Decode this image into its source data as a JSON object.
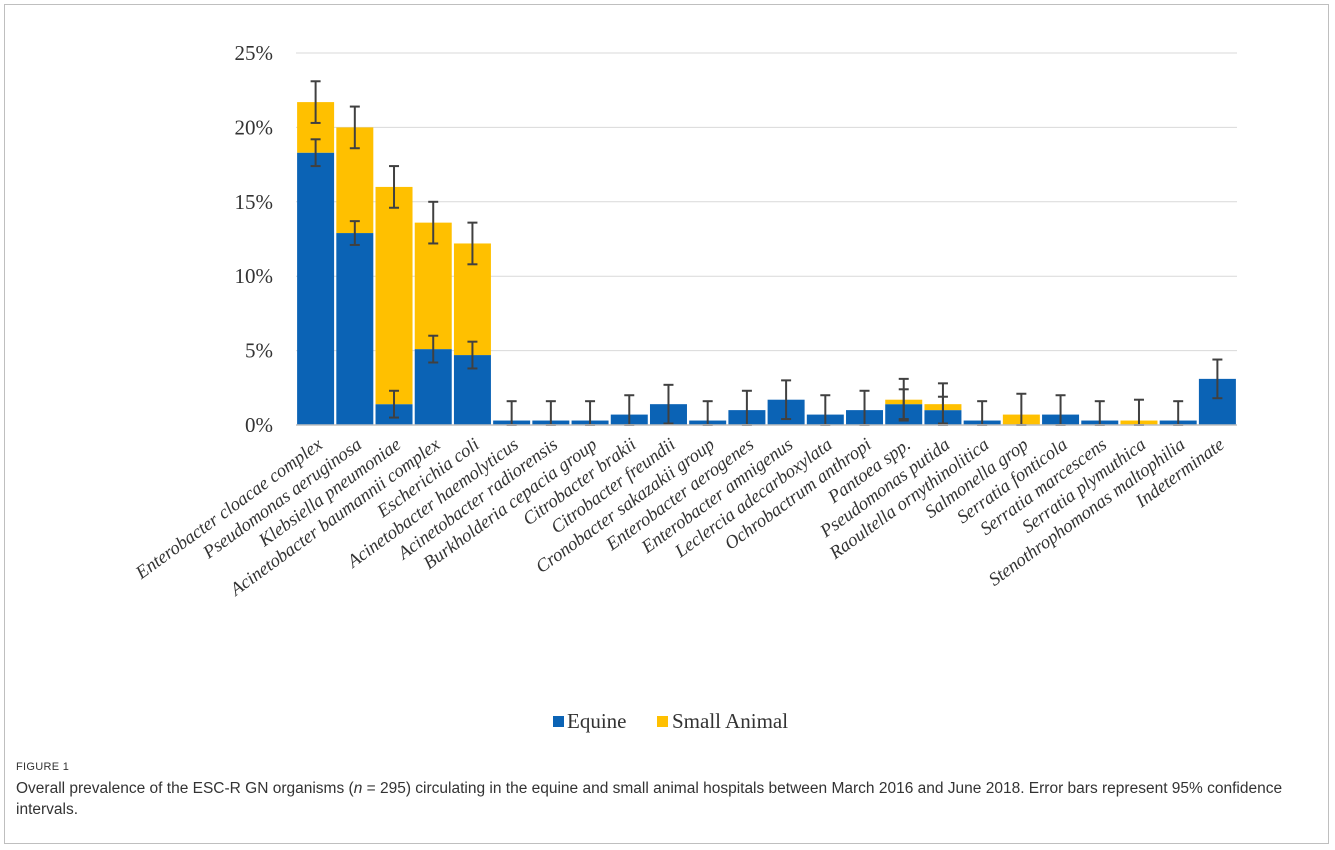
{
  "figure": {
    "label": "FIGURE 1",
    "caption_before_n": "Overall prevalence of the ESC-R GN organisms (",
    "caption_n_symbol": "n",
    "caption_after_n": " = 295) circulating in the equine and small animal hospitals between March 2016 and June 2018. Error bars represent 95% confidence intervals."
  },
  "chart_data": {
    "type": "bar",
    "stacked": true,
    "title": "",
    "xlabel": "",
    "ylabel": "",
    "ylim": [
      0,
      25
    ],
    "yticks": [
      "0%",
      "5%",
      "10%",
      "15%",
      "20%",
      "25%"
    ],
    "grid": true,
    "legend_position": "bottom",
    "categories": [
      "Enterobacter cloacae complex",
      "Pseudomonas aeruginosa",
      "Klebsiella pneumoniae",
      "Acinetobacter baumannii complex",
      "Escherichia coli",
      "Acinetobacter haemolyticus",
      "Acinetobacter radiorensis",
      "Burkholderia cepacia group",
      "Citrobacter brakii",
      "Citrobacter freundii",
      "Cronobacter sakazakii group",
      "Enterobacter aerogenes",
      "Enterobacter amnigenus",
      "Leclercia adecarboxylata",
      "Ochrobactrum anthropi",
      "Pantoea spp.",
      "Pseudomonas putida",
      "Raoultella ornythinolitica",
      "Salmonella grop",
      "Serratia fonticola",
      "Serratia marcescens",
      "Serratia plymuthica",
      "Stenothrophomonas maltophilia",
      "Indeterminate"
    ],
    "series": [
      {
        "name": "Equine",
        "color": "#0b63b5",
        "values": [
          18.3,
          12.9,
          1.4,
          5.1,
          4.7,
          0.3,
          0.3,
          0.3,
          0.7,
          1.4,
          0.3,
          1.0,
          1.7,
          0.7,
          1.0,
          1.4,
          1.0,
          0.3,
          0.0,
          0.7,
          0.3,
          0.0,
          0.3,
          3.1
        ],
        "error": [
          0.9,
          0.8,
          0.9,
          0.9,
          0.9,
          1.3,
          1.3,
          1.3,
          1.3,
          1.3,
          1.3,
          1.3,
          1.3,
          1.3,
          1.3,
          1.0,
          0.9,
          1.3,
          0,
          1.3,
          1.3,
          0,
          1.3,
          1.3
        ]
      },
      {
        "name": "Small Animal",
        "color": "#ffc000",
        "values": [
          3.4,
          7.1,
          14.6,
          8.5,
          7.5,
          0,
          0,
          0,
          0,
          0,
          0,
          0,
          0,
          0,
          0,
          0.3,
          0.4,
          0,
          0.7,
          0,
          0,
          0.3,
          0,
          0
        ],
        "error": [
          1.4,
          1.4,
          1.4,
          1.4,
          1.4,
          0,
          0,
          0,
          0,
          0,
          0,
          0,
          0,
          0,
          0,
          1.4,
          1.4,
          0,
          1.4,
          0,
          0,
          1.4,
          0,
          0
        ]
      }
    ]
  }
}
